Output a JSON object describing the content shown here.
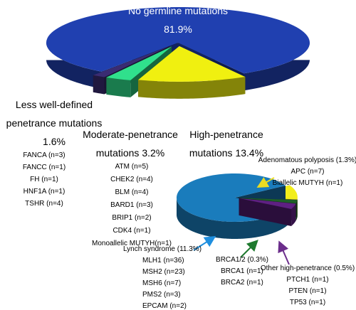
{
  "chart_data": [
    {
      "type": "pie",
      "categories": [
        "No germline mutations",
        "Less well-defined penetrance mutations",
        "Moderate-penetrance mutations",
        "High-penetrance mutations"
      ],
      "values": [
        81.9,
        1.6,
        3.2,
        13.4
      ],
      "value_labels": [
        "81.9%",
        "1.6%",
        "3.2%",
        "13.4%"
      ],
      "colors": [
        "#2040b0",
        "#3a2c72",
        "#30e08c",
        "#f0f010"
      ],
      "details": [
        [],
        [
          "FANCA (n=3)",
          "FANCC (n=1)",
          "FH (n=1)",
          "HNF1A (n=1)",
          "TSHR (n=4)"
        ],
        [
          "ATM (n=5)",
          "CHEK2 (n=4)",
          "BLM (n=4)",
          "BARD1 (n=3)",
          "BRIP1 (n=2)",
          "CDK4 (n=1)",
          "Monoallelic MUTYH(n=1)"
        ],
        []
      ]
    },
    {
      "type": "pie",
      "categories": [
        "Lynch syndrome",
        "Adenomatous polyposis",
        "BRCA1/2",
        "Other high-penetrance"
      ],
      "values": [
        11.3,
        1.3,
        0.3,
        0.5
      ],
      "value_labels": [
        "(11.3%)",
        "(1.3%)",
        "(0.3%)",
        "(0.5%)"
      ],
      "colors": [
        "#1a7cbc",
        "#f2ee1a",
        "#1e6028",
        "#5e2082"
      ],
      "details": [
        [
          "MLH1 (n=36)",
          "MSH2 (n=23)",
          "MSH6 (n=7)",
          "PMS2 (n=3)",
          "EPCAM (n=2)"
        ],
        [
          "APC (n=7)",
          "Biallelic MUTYH (n=1)"
        ],
        [
          "BRCA1 (n=1)",
          "BRCA2 (n=1)"
        ],
        [
          "PTCH1 (n=1)",
          "PTEN (n=1)",
          "TP53 (n=1)"
        ]
      ]
    }
  ]
}
